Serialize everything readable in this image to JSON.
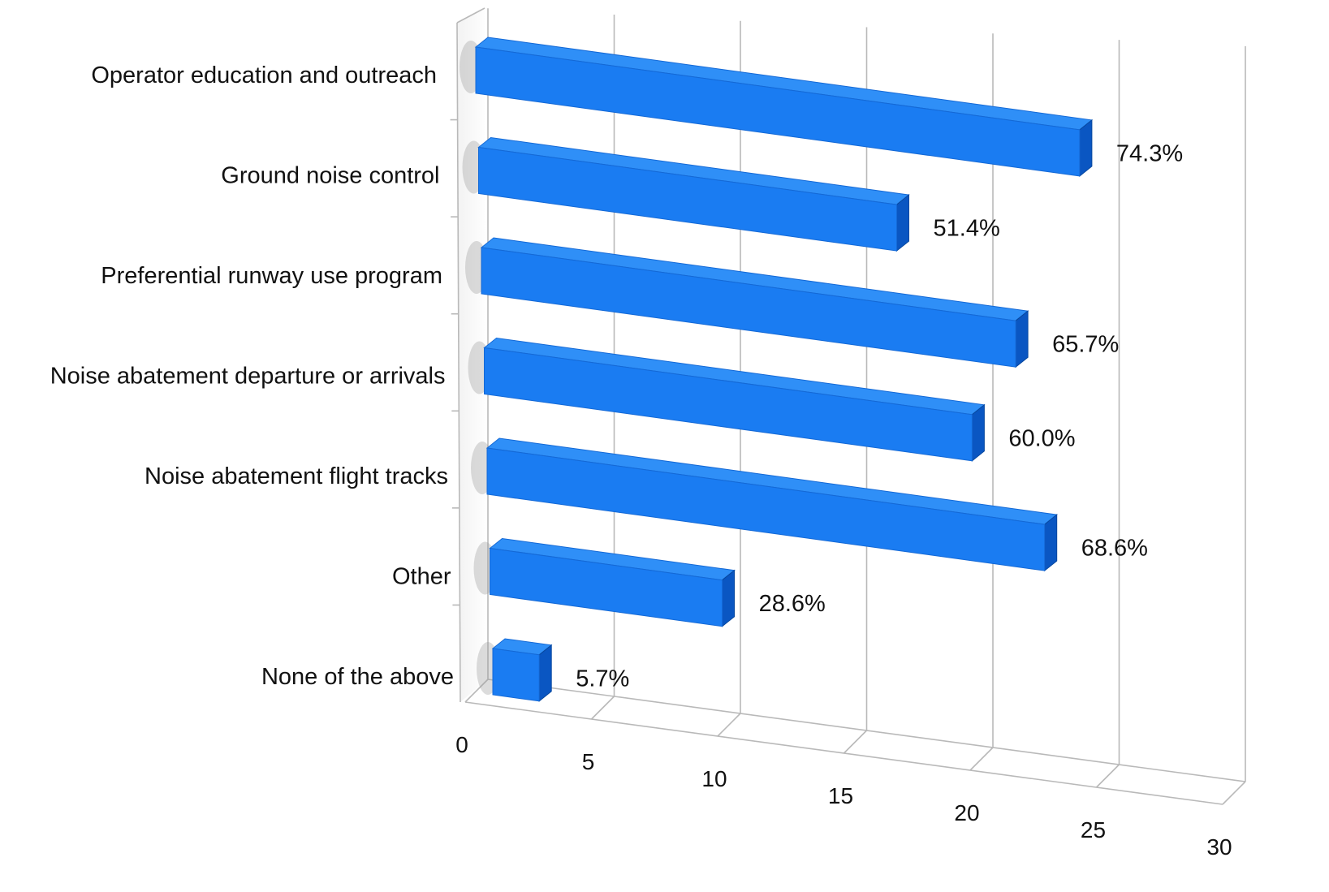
{
  "chart_data": {
    "type": "bar",
    "orientation": "horizontal",
    "style": "3d",
    "categories": [
      "Operator education and outreach",
      "Ground noise control",
      "Preferential runway use program",
      "Noise abatement departure or arrivals",
      "Noise abatement flight tracks",
      "Other",
      "None of the above"
    ],
    "values": [
      26,
      18,
      23,
      21,
      24,
      10,
      2
    ],
    "data_labels": [
      "74.3%",
      "51.4%",
      "65.7%",
      "60.0%",
      "68.6%",
      "28.6%",
      "5.7%"
    ],
    "x_ticks": [
      "0",
      "5",
      "10",
      "15",
      "20",
      "25",
      "30"
    ],
    "xlim": [
      0,
      30
    ],
    "grid": true,
    "legend": "none",
    "colors": {
      "bar_front": "#1a7cf2",
      "bar_top": "#2f8ff7",
      "bar_side": "#0a56c2",
      "grid": "#b9b9b9"
    }
  }
}
